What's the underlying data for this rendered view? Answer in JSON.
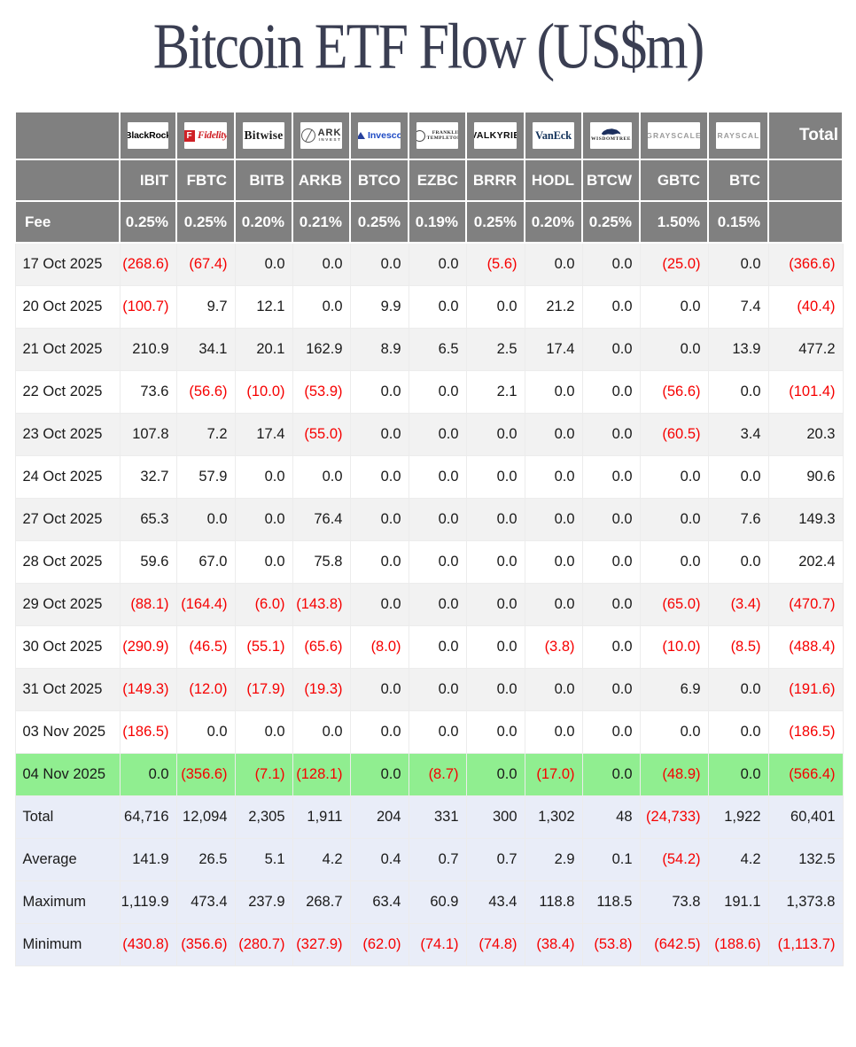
{
  "title": "Bitcoin ETF Flow (US$m)",
  "colors": {
    "header_bg": "#808080",
    "header_text": "#ffffff",
    "stripe": "#f2f2f2",
    "highlight_row": "#90ee90",
    "summary_bg": "#e9edf8",
    "negative": "#f60000",
    "title_text": "#3a3e52"
  },
  "table": {
    "fee_label": "Fee",
    "total_label": "Total",
    "issuers": [
      {
        "brand": "BlackRock",
        "style": "blackrock",
        "ticker": "IBIT",
        "fee": "0.25%"
      },
      {
        "brand": "Fidelity",
        "initial": "F",
        "style": "fidelity",
        "ticker": "FBTC",
        "fee": "0.25%"
      },
      {
        "brand": "Bitwise",
        "style": "bitwise",
        "ticker": "BITB",
        "fee": "0.20%"
      },
      {
        "brand": "ARK",
        "brand2": "INVEST",
        "style": "ark",
        "ticker": "ARKB",
        "fee": "0.21%"
      },
      {
        "brand": "Invesco",
        "style": "invesco",
        "ticker": "BTCO",
        "fee": "0.25%"
      },
      {
        "brand": "FRANKLIN",
        "brand2": "TEMPLETON",
        "style": "franklin",
        "ticker": "EZBC",
        "fee": "0.19%"
      },
      {
        "brand": "VALKYRIE",
        "style": "valkyrie",
        "ticker": "BRRR",
        "fee": "0.25%"
      },
      {
        "brand": "VanEck",
        "style": "vaneck",
        "ticker": "HODL",
        "fee": "0.20%"
      },
      {
        "brand": "WISDOMTREE",
        "style": "wisdomtree",
        "ticker": "BTCW",
        "fee": "0.25%"
      },
      {
        "brand": "GRAYSCALE",
        "style": "grayscale",
        "ticker": "GBTC",
        "fee": "1.50%"
      },
      {
        "brand": "GRAYSCALE",
        "style": "grayscale",
        "ticker": "BTC",
        "fee": "0.15%"
      }
    ],
    "rows": [
      {
        "date": "17 Oct 2025",
        "values": [
          "(268.6)",
          "(67.4)",
          "0.0",
          "0.0",
          "0.0",
          "0.0",
          "(5.6)",
          "0.0",
          "0.0",
          "(25.0)",
          "0.0",
          "(366.6)"
        ]
      },
      {
        "date": "20 Oct 2025",
        "values": [
          "(100.7)",
          "9.7",
          "12.1",
          "0.0",
          "9.9",
          "0.0",
          "0.0",
          "21.2",
          "0.0",
          "0.0",
          "7.4",
          "(40.4)"
        ]
      },
      {
        "date": "21 Oct 2025",
        "values": [
          "210.9",
          "34.1",
          "20.1",
          "162.9",
          "8.9",
          "6.5",
          "2.5",
          "17.4",
          "0.0",
          "0.0",
          "13.9",
          "477.2"
        ]
      },
      {
        "date": "22 Oct 2025",
        "values": [
          "73.6",
          "(56.6)",
          "(10.0)",
          "(53.9)",
          "0.0",
          "0.0",
          "2.1",
          "0.0",
          "0.0",
          "(56.6)",
          "0.0",
          "(101.4)"
        ]
      },
      {
        "date": "23 Oct 2025",
        "values": [
          "107.8",
          "7.2",
          "17.4",
          "(55.0)",
          "0.0",
          "0.0",
          "0.0",
          "0.0",
          "0.0",
          "(60.5)",
          "3.4",
          "20.3"
        ]
      },
      {
        "date": "24 Oct 2025",
        "values": [
          "32.7",
          "57.9",
          "0.0",
          "0.0",
          "0.0",
          "0.0",
          "0.0",
          "0.0",
          "0.0",
          "0.0",
          "0.0",
          "90.6"
        ]
      },
      {
        "date": "27 Oct 2025",
        "values": [
          "65.3",
          "0.0",
          "0.0",
          "76.4",
          "0.0",
          "0.0",
          "0.0",
          "0.0",
          "0.0",
          "0.0",
          "7.6",
          "149.3"
        ]
      },
      {
        "date": "28 Oct 2025",
        "values": [
          "59.6",
          "67.0",
          "0.0",
          "75.8",
          "0.0",
          "0.0",
          "0.0",
          "0.0",
          "0.0",
          "0.0",
          "0.0",
          "202.4"
        ]
      },
      {
        "date": "29 Oct 2025",
        "values": [
          "(88.1)",
          "(164.4)",
          "(6.0)",
          "(143.8)",
          "0.0",
          "0.0",
          "0.0",
          "0.0",
          "0.0",
          "(65.0)",
          "(3.4)",
          "(470.7)"
        ]
      },
      {
        "date": "30 Oct 2025",
        "values": [
          "(290.9)",
          "(46.5)",
          "(55.1)",
          "(65.6)",
          "(8.0)",
          "0.0",
          "0.0",
          "(3.8)",
          "0.0",
          "(10.0)",
          "(8.5)",
          "(488.4)"
        ]
      },
      {
        "date": "31 Oct 2025",
        "values": [
          "(149.3)",
          "(12.0)",
          "(17.9)",
          "(19.3)",
          "0.0",
          "0.0",
          "0.0",
          "0.0",
          "0.0",
          "6.9",
          "0.0",
          "(191.6)"
        ]
      },
      {
        "date": "03 Nov 2025",
        "values": [
          "(186.5)",
          "0.0",
          "0.0",
          "0.0",
          "0.0",
          "0.0",
          "0.0",
          "0.0",
          "0.0",
          "0.0",
          "0.0",
          "(186.5)"
        ]
      },
      {
        "date": "04 Nov 2025",
        "highlight": true,
        "values": [
          "0.0",
          "(356.6)",
          "(7.1)",
          "(128.1)",
          "0.0",
          "(8.7)",
          "0.0",
          "(17.0)",
          "0.0",
          "(48.9)",
          "0.0",
          "(566.4)"
        ]
      }
    ],
    "summary": [
      {
        "label": "Total",
        "values": [
          "64,716",
          "12,094",
          "2,305",
          "1,911",
          "204",
          "331",
          "300",
          "1,302",
          "48",
          "(24,733)",
          "1,922",
          "60,401"
        ]
      },
      {
        "label": "Average",
        "values": [
          "141.9",
          "26.5",
          "5.1",
          "4.2",
          "0.4",
          "0.7",
          "0.7",
          "2.9",
          "0.1",
          "(54.2)",
          "4.2",
          "132.5"
        ]
      },
      {
        "label": "Maximum",
        "values": [
          "1,119.9",
          "473.4",
          "237.9",
          "268.7",
          "63.4",
          "60.9",
          "43.4",
          "118.8",
          "118.5",
          "73.8",
          "191.1",
          "1,373.8"
        ]
      },
      {
        "label": "Minimum",
        "values": [
          "(430.8)",
          "(356.6)",
          "(280.7)",
          "(327.9)",
          "(62.0)",
          "(74.1)",
          "(74.8)",
          "(38.4)",
          "(53.8)",
          "(642.5)",
          "(188.6)",
          "(1,113.7)"
        ]
      }
    ]
  }
}
